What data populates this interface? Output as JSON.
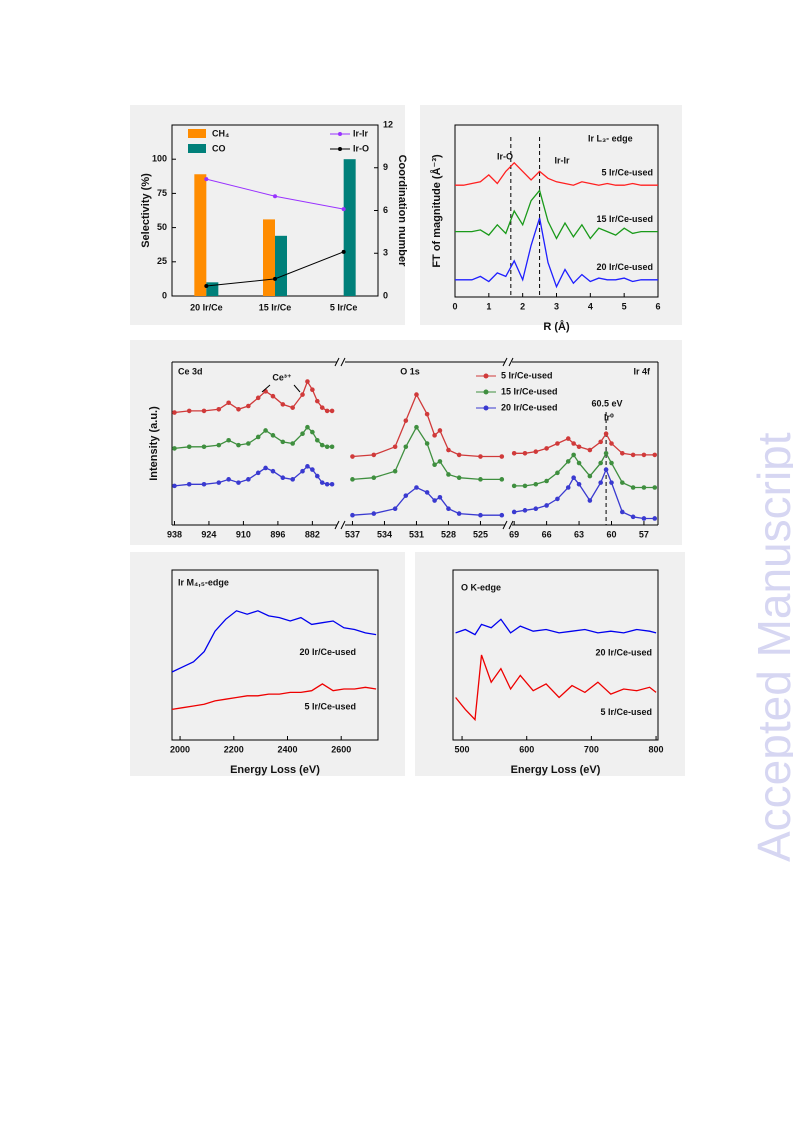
{
  "watermark": "Accepted Manuscript",
  "chart_data": [
    {
      "type": "bar",
      "categories": [
        "20 Ir/Ce",
        "15 Ir/Ce",
        "5 Ir/Ce"
      ],
      "ylabel": "Selectivity (%)",
      "y2label": "Coordination number",
      "ylim": [
        0,
        125
      ],
      "yticks": [
        0,
        25,
        50,
        75,
        100
      ],
      "y2lim": [
        0,
        12
      ],
      "y2ticks": [
        0,
        3,
        6,
        9,
        12
      ],
      "series": [
        {
          "name": "CH₄",
          "type": "bar",
          "color": "#ff8c00",
          "values": [
            89,
            56,
            0
          ]
        },
        {
          "name": "CO",
          "type": "bar",
          "color": "#00807a",
          "values": [
            10,
            44,
            100
          ]
        },
        {
          "name": "Ir-Ir",
          "type": "line",
          "axis": "y2",
          "color": "#9932ff",
          "values": [
            8.2,
            7.0,
            6.1
          ]
        },
        {
          "name": "Ir-O",
          "type": "line",
          "axis": "y2",
          "color": "#000000",
          "values": [
            0.7,
            1.2,
            3.1
          ]
        }
      ]
    },
    {
      "type": "line",
      "xlabel": "R (Å)",
      "ylabel": "FT of magnitude (Å⁻³)",
      "annotations": [
        "Ir L₃- edge",
        "Ir-O",
        "Ir-Ir"
      ],
      "reference_lines": [
        1.65,
        2.5
      ],
      "xlim": [
        0,
        6
      ],
      "xticks": [
        0,
        1,
        2,
        3,
        4,
        5,
        6
      ],
      "ylim": [
        0,
        10
      ],
      "x": [
        0,
        0.25,
        0.5,
        0.75,
        1,
        1.25,
        1.5,
        1.75,
        2,
        2.25,
        2.5,
        2.75,
        3,
        3.25,
        3.5,
        3.75,
        4,
        4.25,
        4.5,
        4.75,
        5,
        5.25,
        5.5,
        5.75,
        6
      ],
      "series": [
        {
          "name": "5 Ir/Ce-used",
          "color": "#ff2020",
          "values": [
            6.5,
            6.5,
            6.6,
            6.7,
            7.1,
            6.6,
            7.3,
            7.8,
            7.3,
            6.8,
            7.3,
            6.9,
            6.7,
            6.6,
            6.5,
            6.7,
            6.6,
            6.5,
            6.6,
            6.5,
            6.5,
            6.6,
            6.5,
            6.5,
            6.5
          ]
        },
        {
          "name": "15 Ir/Ce-used",
          "color": "#1a9a1a",
          "values": [
            3.8,
            3.8,
            3.8,
            3.9,
            3.6,
            4.2,
            3.7,
            5.0,
            4.2,
            5.6,
            6.2,
            4.4,
            3.4,
            4.3,
            3.5,
            4.2,
            3.4,
            4.0,
            3.8,
            3.6,
            4.0,
            3.7,
            3.8,
            3.8,
            3.8
          ]
        },
        {
          "name": "20 Ir/Ce-used",
          "color": "#1f1fff",
          "values": [
            1.0,
            1.0,
            1.0,
            1.2,
            0.9,
            1.4,
            1.2,
            2.1,
            1.0,
            3.0,
            4.6,
            2.0,
            0.6,
            1.6,
            0.8,
            1.3,
            0.9,
            1.1,
            1.0,
            1.0,
            1.1,
            0.9,
            1.0,
            1.0,
            1.0
          ]
        }
      ]
    },
    {
      "type": "line",
      "markers": true,
      "ylabel": "Intensity (a.u.)",
      "annotations": [
        "Ce 3d",
        "Ce³⁺"
      ],
      "xlim": [
        939,
        872
      ],
      "xticks": [
        938,
        924,
        910,
        896,
        882
      ],
      "ylim": [
        0,
        10
      ],
      "x": [
        938,
        932,
        926,
        920,
        916,
        912,
        908,
        904,
        901,
        898,
        894,
        890,
        886,
        884,
        882,
        880,
        878,
        876,
        874
      ],
      "series": [
        {
          "color": "#d03a3a",
          "values": [
            6.9,
            7.0,
            7.0,
            7.1,
            7.5,
            7.1,
            7.3,
            7.8,
            8.2,
            7.9,
            7.4,
            7.2,
            8.0,
            8.8,
            8.3,
            7.6,
            7.2,
            7.0,
            7.0
          ]
        },
        {
          "color": "#3f8f3f",
          "values": [
            4.7,
            4.8,
            4.8,
            4.9,
            5.2,
            4.9,
            5.0,
            5.4,
            5.8,
            5.5,
            5.1,
            5.0,
            5.6,
            6.0,
            5.7,
            5.2,
            4.9,
            4.8,
            4.8
          ]
        },
        {
          "color": "#3a3ad0",
          "values": [
            2.4,
            2.5,
            2.5,
            2.6,
            2.8,
            2.6,
            2.8,
            3.2,
            3.5,
            3.3,
            2.9,
            2.8,
            3.3,
            3.6,
            3.4,
            3.0,
            2.6,
            2.5,
            2.5
          ]
        }
      ]
    },
    {
      "type": "line",
      "markers": true,
      "annotations": [
        "O 1s"
      ],
      "xlim": [
        537.7,
        522.7
      ],
      "xticks": [
        537,
        534,
        531,
        528,
        525
      ],
      "ylim": [
        0,
        10
      ],
      "x": [
        537,
        535,
        533,
        532,
        531,
        530,
        529.3,
        528.8,
        528,
        527,
        525,
        523
      ],
      "series": [
        {
          "name": "5 Ir/Ce-used",
          "color": "#d03a3a",
          "values": [
            4.2,
            4.3,
            4.8,
            6.4,
            8.0,
            6.8,
            5.5,
            5.8,
            4.6,
            4.3,
            4.2,
            4.2
          ]
        },
        {
          "name": "15 Ir/Ce-used",
          "color": "#3f8f3f",
          "values": [
            2.8,
            2.9,
            3.3,
            4.8,
            6.0,
            5.0,
            3.7,
            3.9,
            3.1,
            2.9,
            2.8,
            2.8
          ]
        },
        {
          "name": "20 Ir/Ce-used",
          "color": "#3a3ad0",
          "values": [
            0.6,
            0.7,
            1.0,
            1.8,
            2.3,
            2.0,
            1.5,
            1.7,
            1.0,
            0.7,
            0.6,
            0.6
          ]
        }
      ]
    },
    {
      "type": "line",
      "markers": true,
      "annotations": [
        "Ir 4f",
        "60.5 eV",
        "Ir⁰"
      ],
      "reference_lines": [
        60.5
      ],
      "xlim": [
        69.2,
        55.7
      ],
      "xticks": [
        69,
        66,
        63,
        60,
        57
      ],
      "ylim": [
        0,
        10
      ],
      "x": [
        69,
        68,
        67,
        66,
        65,
        64,
        63.5,
        63,
        62,
        61,
        60.5,
        60,
        59,
        58,
        57,
        56
      ],
      "series": [
        {
          "color": "#d03a3a",
          "values": [
            4.4,
            4.4,
            4.5,
            4.7,
            5.0,
            5.3,
            5.0,
            4.8,
            4.6,
            5.1,
            5.6,
            5.0,
            4.4,
            4.3,
            4.3,
            4.3
          ]
        },
        {
          "color": "#3f8f3f",
          "values": [
            2.4,
            2.4,
            2.5,
            2.7,
            3.2,
            3.9,
            4.3,
            3.8,
            3.0,
            3.8,
            4.4,
            3.8,
            2.6,
            2.3,
            2.3,
            2.3
          ]
        },
        {
          "color": "#3a3ad0",
          "values": [
            0.8,
            0.9,
            1.0,
            1.2,
            1.6,
            2.3,
            2.9,
            2.5,
            1.5,
            2.6,
            3.4,
            2.6,
            0.8,
            0.5,
            0.4,
            0.4
          ]
        }
      ]
    },
    {
      "type": "line",
      "xlabel": "Energy Loss (eV)",
      "annotations": [
        "Ir M₄,₅-edge"
      ],
      "xlim": [
        1970,
        2737
      ],
      "xticks": [
        2000,
        2200,
        2400,
        2600
      ],
      "ylim": [
        0,
        10
      ],
      "x": [
        1970,
        2010,
        2050,
        2090,
        2130,
        2170,
        2210,
        2250,
        2290,
        2330,
        2370,
        2410,
        2450,
        2490,
        2530,
        2570,
        2610,
        2650,
        2690,
        2730
      ],
      "series": [
        {
          "name": "20 Ir/Ce-used",
          "color": "#0000ee",
          "values": [
            4.0,
            4.3,
            4.6,
            5.2,
            6.4,
            7.1,
            7.6,
            7.4,
            7.6,
            7.3,
            7.2,
            7.0,
            7.2,
            6.8,
            6.9,
            7.0,
            6.6,
            6.5,
            6.3,
            6.2
          ]
        },
        {
          "name": "5 Ir/Ce-used",
          "color": "#ee0000",
          "values": [
            1.8,
            1.9,
            2.0,
            2.1,
            2.3,
            2.4,
            2.5,
            2.6,
            2.6,
            2.7,
            2.7,
            2.8,
            2.8,
            2.9,
            3.3,
            2.9,
            3.0,
            3.0,
            3.1,
            3.0
          ]
        }
      ]
    },
    {
      "type": "line",
      "xlabel": "Energy Loss (eV)",
      "annotations": [
        "O K-edge"
      ],
      "xlim": [
        486,
        803
      ],
      "xticks": [
        500,
        600,
        700,
        800
      ],
      "ylim": [
        0,
        10
      ],
      "x": [
        490,
        505,
        520,
        530,
        545,
        560,
        575,
        590,
        610,
        630,
        650,
        670,
        690,
        710,
        730,
        750,
        770,
        790,
        800
      ],
      "series": [
        {
          "name": "20 Ir/Ce-used",
          "color": "#0000ee",
          "values": [
            6.3,
            6.5,
            6.2,
            6.8,
            6.6,
            7.1,
            6.3,
            6.7,
            6.4,
            6.5,
            6.3,
            6.4,
            6.5,
            6.3,
            6.4,
            6.3,
            6.5,
            6.4,
            6.3
          ]
        },
        {
          "name": "5 Ir/Ce-used",
          "color": "#ee0000",
          "values": [
            2.5,
            1.8,
            1.2,
            5.0,
            3.4,
            4.2,
            3.0,
            3.8,
            2.9,
            3.3,
            2.5,
            3.2,
            2.8,
            3.4,
            2.7,
            3.0,
            2.9,
            3.1,
            2.8
          ]
        }
      ]
    }
  ]
}
